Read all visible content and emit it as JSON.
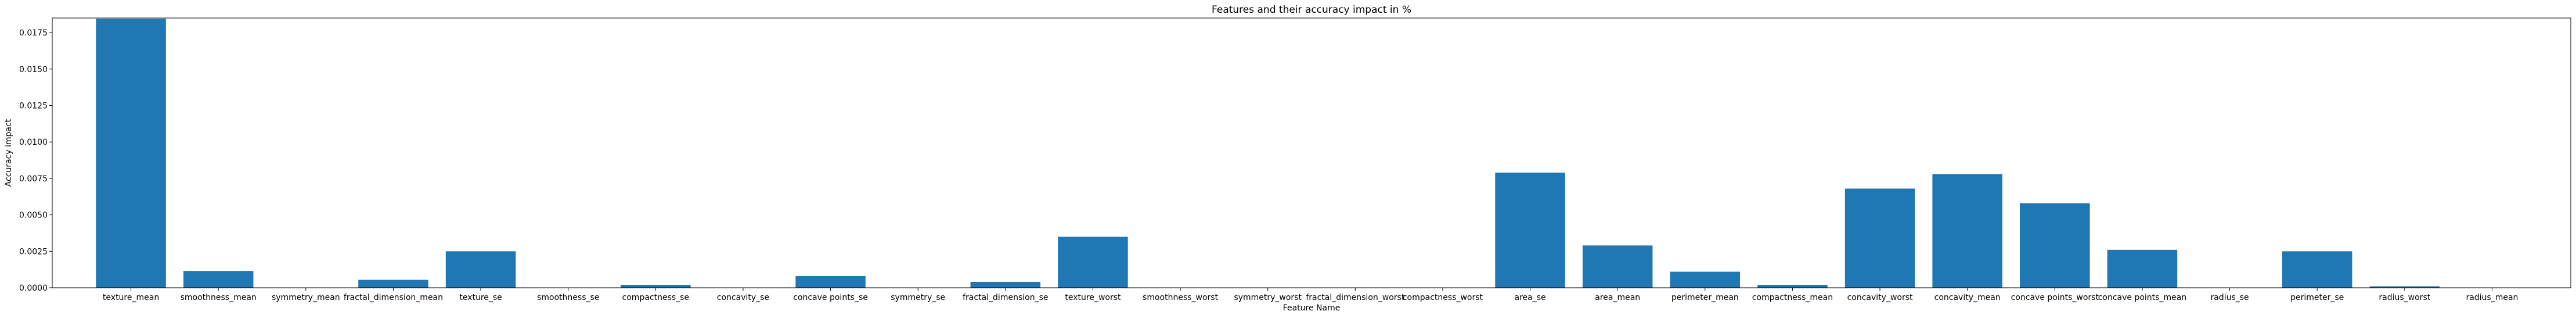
{
  "chart_data": {
    "type": "bar",
    "title": "Features and their accuracy impact in %",
    "xlabel": "Feature Name",
    "ylabel": "Accuracy impact",
    "ylim": [
      0,
      0.0185
    ],
    "yticks": [
      0.0,
      0.0025,
      0.005,
      0.0075,
      0.01,
      0.0125,
      0.015,
      0.0175
    ],
    "ytick_labels": [
      "0.0000",
      "0.0025",
      "0.0050",
      "0.0075",
      "0.0100",
      "0.0125",
      "0.0150",
      "0.0175"
    ],
    "bar_color": "#1f77b4",
    "grid": false,
    "legend": "none",
    "categories": [
      "texture_mean",
      "smoothness_mean",
      "symmetry_mean",
      "fractal_dimension_mean",
      "texture_se",
      "smoothness_se",
      "compactness_se",
      "concavity_se",
      "concave points_se",
      "symmetry_se",
      "fractal_dimension_se",
      "texture_worst",
      "smoothness_worst",
      "symmetry_worst",
      "fractal_dimension_worst",
      "compactness_worst",
      "area_se",
      "area_mean",
      "perimeter_mean",
      "compactness_mean",
      "concavity_worst",
      "concavity_mean",
      "concave points_worst",
      "concave points_mean",
      "radius_se",
      "perimeter_se",
      "radius_worst",
      "radius_mean"
    ],
    "values": [
      0.01845,
      0.00115,
      0.0,
      0.00055,
      0.0025,
      0.0,
      0.0002,
      0.0,
      0.0008,
      0.0,
      0.0004,
      0.0035,
      0.0,
      0.0,
      0.0,
      0.0,
      0.0079,
      0.0029,
      0.0011,
      0.0002,
      0.0068,
      0.0078,
      0.0058,
      0.0026,
      0.0,
      0.0025,
      0.0001,
      0.0
    ]
  }
}
